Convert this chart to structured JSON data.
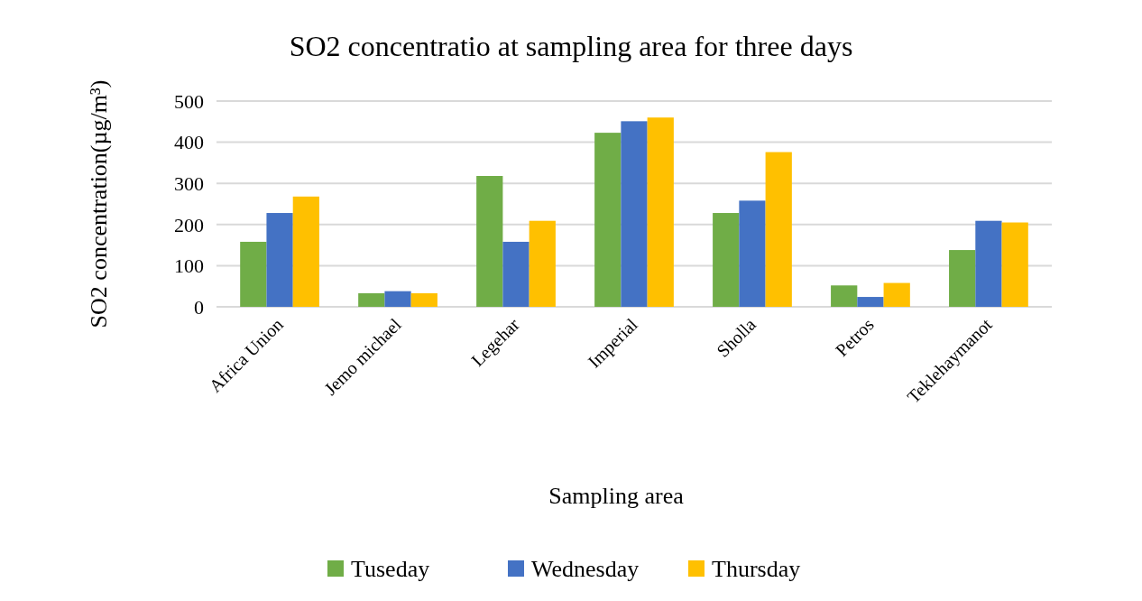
{
  "chart_data": {
    "type": "bar",
    "title": "SO2 concentratio at sampling area for three days",
    "xlabel": "Sampling area",
    "ylabel": "SO2 concentration(µg/m³)",
    "categories": [
      "Africa Union",
      "Jemo michael",
      "Legehar",
      "Imperial",
      "Sholla",
      "Petros",
      "Teklehaymanot"
    ],
    "series": [
      {
        "name": "Tuseday",
        "color": "#70ad47",
        "values": [
          158,
          33,
          318,
          423,
          228,
          52,
          138
        ]
      },
      {
        "name": "Wednesday",
        "color": "#4472c4",
        "values": [
          228,
          38,
          158,
          451,
          258,
          24,
          209
        ]
      },
      {
        "name": "Thursday",
        "color": "#ffc000",
        "values": [
          268,
          33,
          209,
          460,
          376,
          58,
          205
        ]
      }
    ],
    "ylim": [
      0,
      500
    ],
    "yticks": [
      0,
      100,
      200,
      300,
      400,
      500
    ],
    "grid": "y",
    "legend": "bottom"
  }
}
